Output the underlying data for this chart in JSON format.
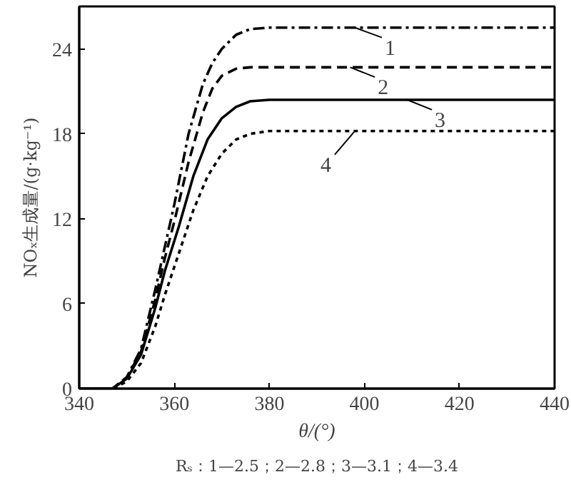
{
  "chart_data": {
    "type": "line",
    "xlabel": "θ/(°)",
    "ylabel": "NOₓ生成量/(g·kg⁻¹)",
    "xlim": [
      340,
      440
    ],
    "ylim": [
      0,
      27
    ],
    "xticks": [
      340,
      360,
      380,
      400,
      420,
      440
    ],
    "yticks": [
      0,
      6,
      12,
      18,
      24
    ],
    "grid": false,
    "marker": "none",
    "series": [
      {
        "color": "#000000",
        "line_style": "dashdot",
        "x": [
          340,
          347,
          350,
          353,
          356,
          358,
          360,
          363,
          366,
          368,
          370,
          373,
          376,
          380,
          440
        ],
        "values": [
          0,
          0,
          0.8,
          2.8,
          7,
          10,
          13,
          18,
          21.5,
          23,
          24,
          25,
          25.4,
          25.5,
          25.5
        ]
      },
      {
        "color": "#000000",
        "line_style": "dashed",
        "x": [
          340,
          347,
          350,
          353,
          356,
          358,
          360,
          363,
          366,
          368,
          370,
          373,
          376,
          380,
          440
        ],
        "values": [
          0,
          0,
          0.8,
          2.6,
          6.3,
          9.2,
          11.8,
          16,
          19.5,
          21.2,
          22.1,
          22.6,
          22.7,
          22.7,
          22.7
        ]
      },
      {
        "color": "#000000",
        "line_style": "solid",
        "x": [
          340,
          347,
          350,
          353,
          356,
          358,
          361,
          364,
          367,
          370,
          373,
          376,
          380,
          385,
          440
        ],
        "values": [
          0,
          0,
          0.7,
          2.4,
          5.7,
          8.3,
          11.5,
          15,
          17.6,
          19.1,
          19.9,
          20.3,
          20.4,
          20.4,
          20.4
        ]
      },
      {
        "color": "#000000",
        "line_style": "dotted",
        "x": [
          340,
          347,
          350,
          353,
          356,
          358,
          361,
          364,
          367,
          370,
          373,
          376,
          380,
          385,
          440
        ],
        "values": [
          0,
          0,
          0.5,
          1.8,
          4.4,
          6.6,
          9.6,
          12.6,
          15,
          16.6,
          17.6,
          18.0,
          18.2,
          18.2,
          18.2
        ]
      }
    ],
    "annotations": [
      {
        "text": "1",
        "x": 398,
        "y": 25.5
      },
      {
        "text": "2",
        "x": 397,
        "y": 22.7
      },
      {
        "text": "3",
        "x": 409,
        "y": 20.4
      },
      {
        "text": "4",
        "x": 398,
        "y": 18.2
      },
      "Rₛ：1—2.5；2—2.8；3—3.1；4—3.4"
    ]
  }
}
